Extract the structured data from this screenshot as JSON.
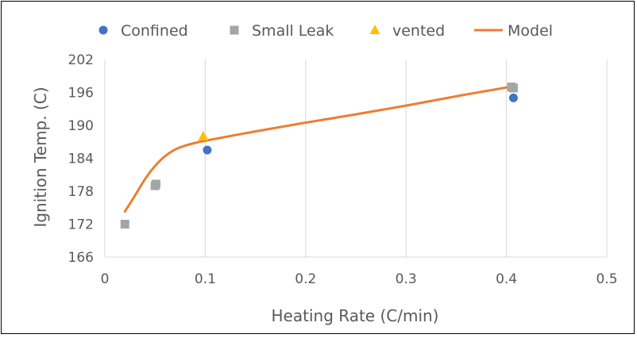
{
  "chart_data": {
    "type": "scatter",
    "title": "",
    "xlabel": "Heating Rate (C/min)",
    "ylabel": "Ignition Temp. (C)",
    "xlim": [
      0,
      0.5
    ],
    "ylim": [
      166,
      202
    ],
    "x_ticks": [
      0,
      0.1,
      0.2,
      0.3,
      0.4,
      0.5
    ],
    "y_ticks": [
      166,
      172,
      178,
      184,
      190,
      196,
      202
    ],
    "x_tick_labels": [
      "0",
      "0.1",
      "0.2",
      "0.3",
      "0.4",
      "0.5"
    ],
    "y_tick_labels": [
      "166",
      "172",
      "178",
      "184",
      "190",
      "196",
      "202"
    ],
    "grid": "vertical",
    "legend_position": "top",
    "series": [
      {
        "name": "Confined",
        "kind": "scatter",
        "marker": "circle",
        "color": "#4472C4",
        "points": [
          [
            0.102,
            185.5
          ],
          [
            0.407,
            195.0
          ]
        ]
      },
      {
        "name": "Small Leak",
        "kind": "scatter",
        "marker": "square",
        "color": "#A5A5A5",
        "points": [
          [
            0.02,
            172.0
          ],
          [
            0.05,
            179.0
          ],
          [
            0.051,
            179.3
          ],
          [
            0.405,
            197.0
          ],
          [
            0.407,
            196.8
          ]
        ]
      },
      {
        "name": "vented",
        "kind": "scatter",
        "marker": "triangle",
        "color": "#FFC000",
        "points": [
          [
            0.098,
            188.0
          ]
        ]
      },
      {
        "name": "Model",
        "kind": "line",
        "color": "#ED7D31",
        "points": [
          [
            0.02,
            174.3
          ],
          [
            0.03,
            177.2
          ],
          [
            0.04,
            180.2
          ],
          [
            0.05,
            182.6
          ],
          [
            0.06,
            184.4
          ],
          [
            0.07,
            185.6
          ],
          [
            0.08,
            186.3
          ],
          [
            0.09,
            186.8
          ],
          [
            0.1,
            187.2
          ],
          [
            0.15,
            188.9
          ],
          [
            0.2,
            190.5
          ],
          [
            0.25,
            192.0
          ],
          [
            0.3,
            193.6
          ],
          [
            0.35,
            195.3
          ],
          [
            0.4,
            196.9
          ]
        ]
      }
    ]
  }
}
